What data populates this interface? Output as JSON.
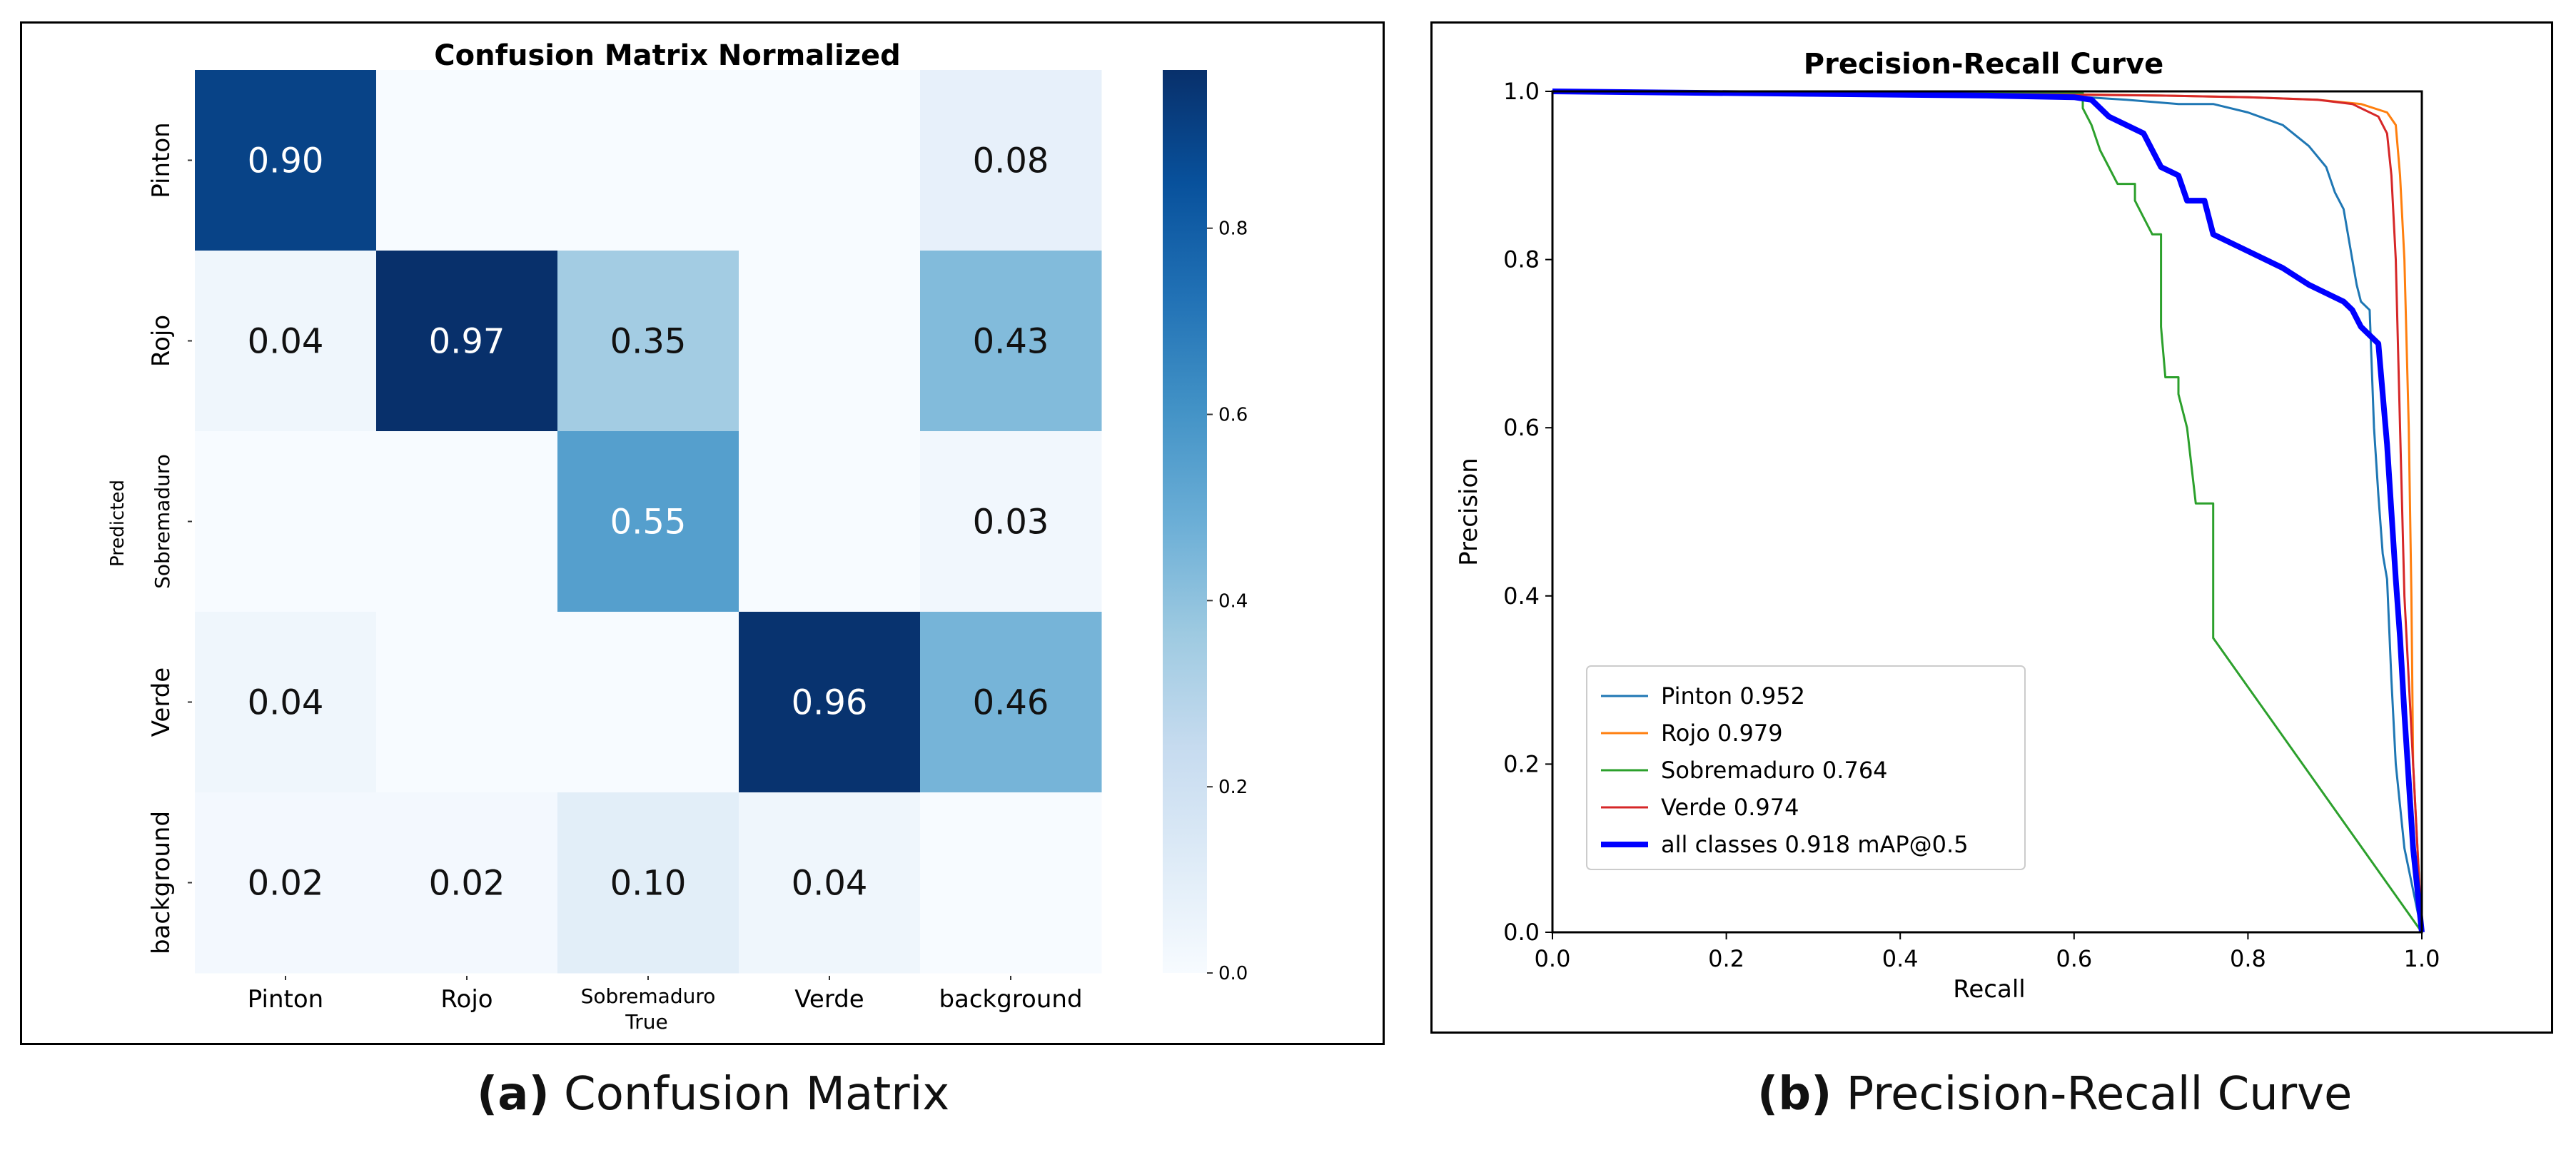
{
  "figure": {
    "caption_a": {
      "label": "(a)",
      "text": "Confusion Matrix"
    },
    "caption_b": {
      "label": "(b)",
      "text": "Precision-Recall Curve"
    }
  },
  "chart_data": [
    {
      "type": "heatmap",
      "title": "Confusion Matrix Normalized",
      "xlabel": "True",
      "ylabel": "Predicted",
      "x_categories": [
        "Pinton",
        "Rojo",
        "Sobremaduro",
        "Verde",
        "background"
      ],
      "y_categories": [
        "Pinton",
        "Rojo",
        "Sobremaduro",
        "Verde",
        "background"
      ],
      "values": [
        [
          0.9,
          null,
          null,
          null,
          0.08
        ],
        [
          0.04,
          0.97,
          0.35,
          null,
          0.43
        ],
        [
          null,
          null,
          0.55,
          null,
          0.03
        ],
        [
          0.04,
          null,
          null,
          0.96,
          0.46
        ],
        [
          0.02,
          0.02,
          0.1,
          0.04,
          null
        ]
      ],
      "colormap": "Blues",
      "colorbar": {
        "min": 0.0,
        "max": 0.97,
        "ticks": [
          "0.0",
          "0.2",
          "0.4",
          "0.6",
          "0.8"
        ]
      }
    },
    {
      "type": "line",
      "title": "Precision-Recall Curve",
      "xlabel": "Recall",
      "ylabel": "Precision",
      "xlim": [
        0,
        1
      ],
      "ylim": [
        0,
        1
      ],
      "xticks": [
        "0.0",
        "0.2",
        "0.4",
        "0.6",
        "0.8",
        "1.0"
      ],
      "yticks": [
        "0.0",
        "0.2",
        "0.4",
        "0.6",
        "0.8",
        "1.0"
      ],
      "legend_position": "lower-left",
      "series": [
        {
          "name": "Pinton 0.952",
          "color": "#1f77b4",
          "width": "thin",
          "points": [
            [
              0,
              1.0
            ],
            [
              0.3,
              0.995
            ],
            [
              0.6,
              0.994
            ],
            [
              0.66,
              0.99
            ],
            [
              0.72,
              0.985
            ],
            [
              0.76,
              0.985
            ],
            [
              0.8,
              0.975
            ],
            [
              0.84,
              0.96
            ],
            [
              0.87,
              0.935
            ],
            [
              0.89,
              0.91
            ],
            [
              0.9,
              0.88
            ],
            [
              0.91,
              0.86
            ],
            [
              0.92,
              0.8
            ],
            [
              0.925,
              0.77
            ],
            [
              0.93,
              0.75
            ],
            [
              0.94,
              0.74
            ],
            [
              0.945,
              0.6
            ],
            [
              0.95,
              0.52
            ],
            [
              0.955,
              0.45
            ],
            [
              0.96,
              0.42
            ],
            [
              0.965,
              0.3
            ],
            [
              0.97,
              0.2
            ],
            [
              0.98,
              0.1
            ],
            [
              0.99,
              0.05
            ],
            [
              1.0,
              0.0
            ]
          ]
        },
        {
          "name": "Rojo 0.979",
          "color": "#ff7f0e",
          "width": "thin",
          "points": [
            [
              0,
              1.0
            ],
            [
              0.5,
              0.998
            ],
            [
              0.7,
              0.995
            ],
            [
              0.8,
              0.993
            ],
            [
              0.88,
              0.99
            ],
            [
              0.93,
              0.985
            ],
            [
              0.96,
              0.975
            ],
            [
              0.97,
              0.96
            ],
            [
              0.975,
              0.9
            ],
            [
              0.98,
              0.8
            ],
            [
              0.985,
              0.6
            ],
            [
              0.988,
              0.4
            ],
            [
              0.99,
              0.2
            ],
            [
              1.0,
              0.0
            ]
          ]
        },
        {
          "name": "Sobremaduro 0.764",
          "color": "#2ca02c",
          "width": "thin",
          "points": [
            [
              0,
              1.0
            ],
            [
              0.6,
              0.998
            ],
            [
              0.61,
              0.998
            ],
            [
              0.61,
              0.98
            ],
            [
              0.62,
              0.96
            ],
            [
              0.63,
              0.93
            ],
            [
              0.64,
              0.91
            ],
            [
              0.65,
              0.89
            ],
            [
              0.67,
              0.89
            ],
            [
              0.67,
              0.87
            ],
            [
              0.68,
              0.85
            ],
            [
              0.69,
              0.83
            ],
            [
              0.7,
              0.83
            ],
            [
              0.7,
              0.72
            ],
            [
              0.705,
              0.66
            ],
            [
              0.72,
              0.66
            ],
            [
              0.72,
              0.64
            ],
            [
              0.73,
              0.6
            ],
            [
              0.74,
              0.51
            ],
            [
              0.76,
              0.51
            ],
            [
              0.76,
              0.35
            ],
            [
              1.0,
              0.0
            ]
          ]
        },
        {
          "name": "Verde 0.974",
          "color": "#d62728",
          "width": "thin",
          "points": [
            [
              0,
              1.0
            ],
            [
              0.5,
              0.997
            ],
            [
              0.7,
              0.995
            ],
            [
              0.8,
              0.993
            ],
            [
              0.88,
              0.99
            ],
            [
              0.92,
              0.985
            ],
            [
              0.95,
              0.97
            ],
            [
              0.96,
              0.95
            ],
            [
              0.965,
              0.9
            ],
            [
              0.97,
              0.8
            ],
            [
              0.975,
              0.6
            ],
            [
              0.98,
              0.4
            ],
            [
              0.99,
              0.2
            ],
            [
              1.0,
              0.0
            ]
          ]
        },
        {
          "name": "all classes 0.918 mAP@0.5",
          "color": "#0000ff",
          "width": "thick",
          "points": [
            [
              0,
              1.0
            ],
            [
              0.5,
              0.995
            ],
            [
              0.6,
              0.993
            ],
            [
              0.62,
              0.99
            ],
            [
              0.64,
              0.97
            ],
            [
              0.66,
              0.96
            ],
            [
              0.68,
              0.95
            ],
            [
              0.69,
              0.93
            ],
            [
              0.7,
              0.91
            ],
            [
              0.72,
              0.9
            ],
            [
              0.73,
              0.87
            ],
            [
              0.75,
              0.87
            ],
            [
              0.76,
              0.83
            ],
            [
              0.8,
              0.81
            ],
            [
              0.84,
              0.79
            ],
            [
              0.87,
              0.77
            ],
            [
              0.89,
              0.76
            ],
            [
              0.91,
              0.75
            ],
            [
              0.92,
              0.74
            ],
            [
              0.93,
              0.72
            ],
            [
              0.94,
              0.71
            ],
            [
              0.95,
              0.7
            ],
            [
              0.955,
              0.64
            ],
            [
              0.96,
              0.58
            ],
            [
              0.965,
              0.5
            ],
            [
              0.97,
              0.42
            ],
            [
              0.975,
              0.35
            ],
            [
              0.98,
              0.26
            ],
            [
              0.985,
              0.18
            ],
            [
              0.99,
              0.1
            ],
            [
              1.0,
              0.0
            ]
          ]
        }
      ]
    }
  ]
}
